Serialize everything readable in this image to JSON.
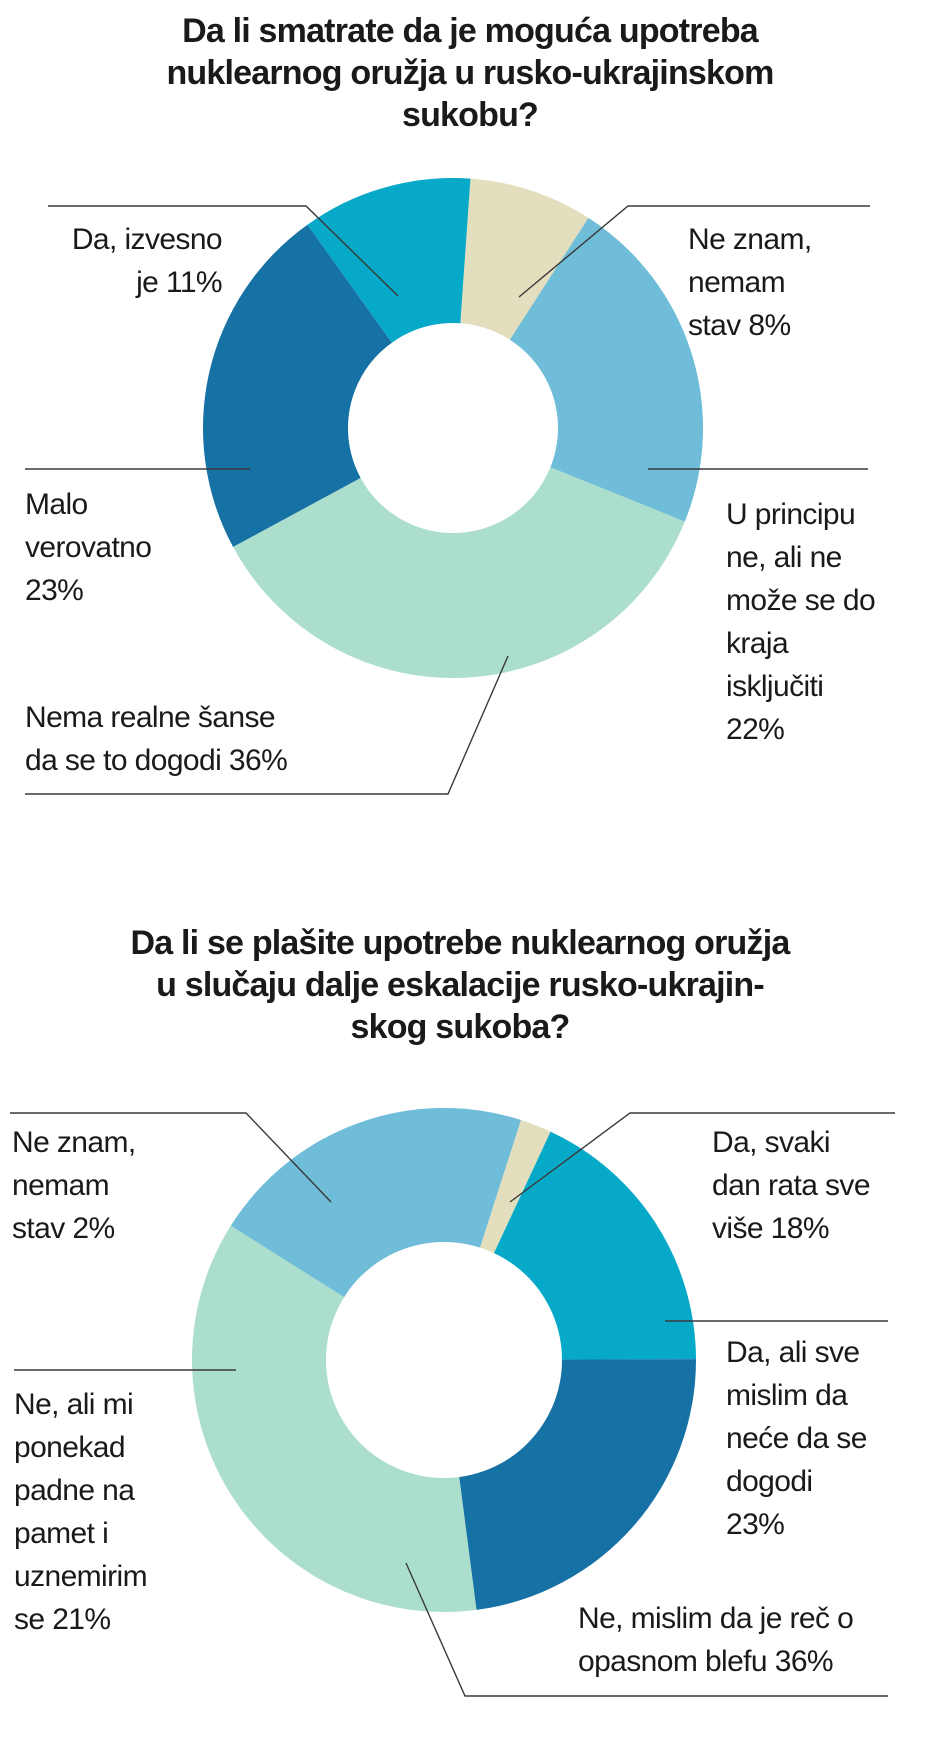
{
  "chart_data": [
    {
      "type": "pie",
      "title": "Da li smatrate da je moguća upotreba nuklearnog oružja u rusko-ukrajinskom sukobu?",
      "slices": [
        {
          "label": "Ne znam, nemam stav 8%",
          "value": 8,
          "color": "#e3dfbe"
        },
        {
          "label": "U principu ne, ali ne može se do kraja isključiti 22%",
          "value": 22,
          "color": "#6fbdd8"
        },
        {
          "label": "Nema realne šanse da se to dogodi 36%",
          "value": 36,
          "color": "#acdecd"
        },
        {
          "label": "Malo verovatno 23%",
          "value": 23,
          "color": "#1671a5"
        },
        {
          "label": "Da, izvesno je 11%",
          "value": 11,
          "color": "#06a9c8"
        }
      ]
    },
    {
      "type": "pie",
      "title": "Da li se plašite upotrebe nuklearnog oružja u slučaju dalje eskalacije rusko-ukrajin-skog sukoba?",
      "slices": [
        {
          "label": "Da, svaki dan rata sve više 18%",
          "value": 18,
          "color": "#06a9c8"
        },
        {
          "label": "Da, ali sve mislim da neće da se dogodi 23%",
          "value": 23,
          "color": "#1671a5"
        },
        {
          "label": "Ne, mislim da je reč o opasnom blefu 36%",
          "value": 36,
          "color": "#acdecd"
        },
        {
          "label": "Ne, ali mi ponekad padne na pamet i uznemirim se 21%",
          "value": 21,
          "color": "#6fbdd8"
        },
        {
          "label": "Ne znam, nemam stav 2%",
          "value": 2,
          "color": "#e3dfbe"
        }
      ]
    }
  ],
  "chart1": {
    "title_lines": [
      "Da li smatrate da je moguća upotreba",
      "nuklearnog oružja u rusko-ukrajinskom",
      "sukobu?"
    ],
    "labels": {
      "da_izvesno": [
        "Da, izvesno",
        "je 11%"
      ],
      "ne_znam": [
        "Ne znam,",
        "nemam",
        "stav 8%"
      ],
      "malo": [
        "Malo",
        "verovatno",
        "23%"
      ],
      "u_principu": [
        "U principu",
        "ne, ali ne",
        "može se do",
        "kraja",
        "isključiti",
        "22%"
      ],
      "nema": [
        "Nema realne šanse",
        "da se to dogodi 36%"
      ]
    }
  },
  "chart2": {
    "title_lines": [
      "Da li se plašite upotrebe nuklearnog oružja",
      "u slučaju dalje eskalacije rusko-ukrajin-",
      "skog sukoba?"
    ],
    "labels": {
      "ne_znam": [
        "Ne znam,",
        "nemam",
        "stav 2%"
      ],
      "da_svaki": [
        "Da, svaki",
        "dan rata sve",
        "više 18%"
      ],
      "da_ali": [
        "Da, ali sve",
        "mislim da",
        "neće da se",
        "dogodi",
        "23%"
      ],
      "ne_ali": [
        "Ne, ali mi",
        "ponekad",
        "padne na",
        "pamet i",
        "uznemirim",
        "se 21%"
      ],
      "blef": [
        "Ne, mislim da je reč o",
        "opasnom blefu 36%"
      ]
    }
  }
}
